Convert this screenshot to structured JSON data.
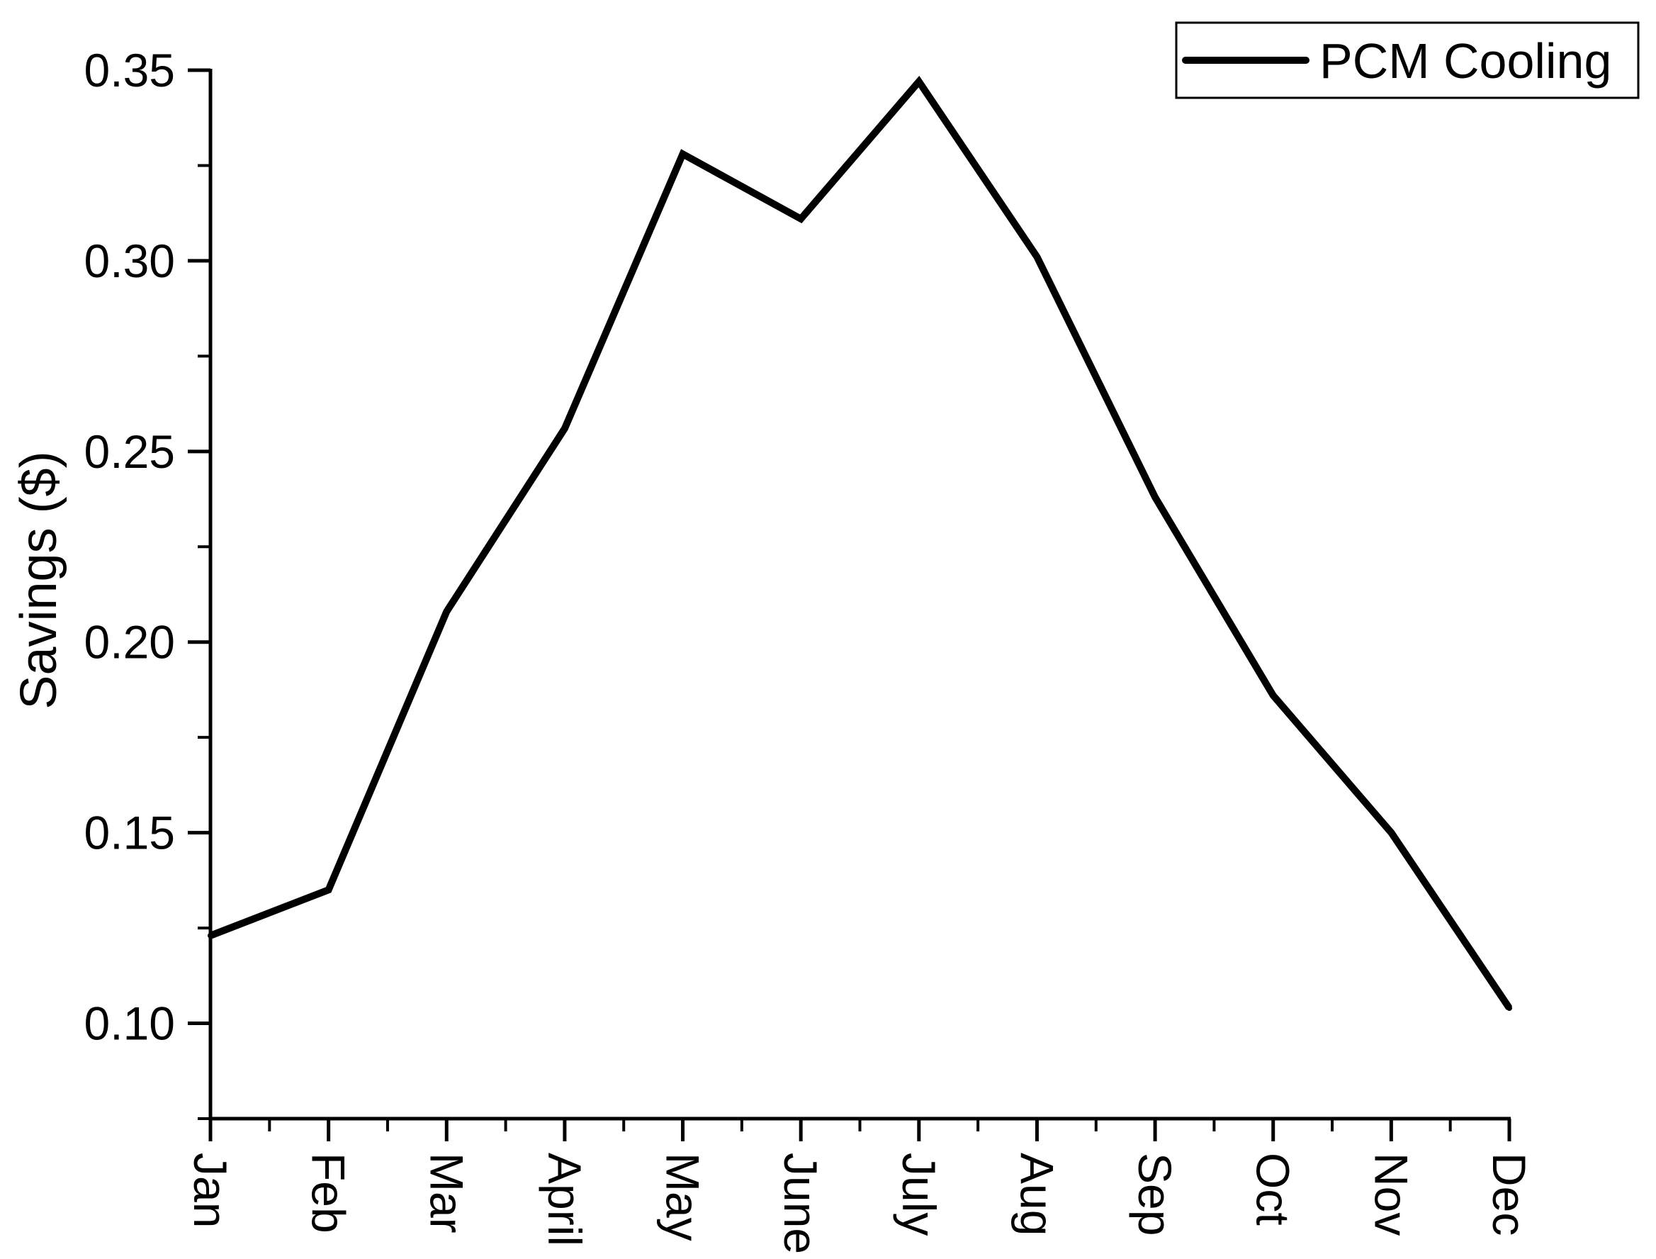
{
  "chart_data": {
    "type": "line",
    "title": "",
    "xlabel": "",
    "ylabel": "Savings ($)",
    "categories": [
      "Jan",
      "Feb",
      "Mar",
      "April",
      "May",
      "June",
      "July",
      "Aug",
      "Sep",
      "Oct",
      "Nov",
      "Dec"
    ],
    "series": [
      {
        "name": "PCM Cooling",
        "color": "#000000",
        "values": [
          0.123,
          0.135,
          0.208,
          0.256,
          0.328,
          0.311,
          0.347,
          0.301,
          0.238,
          0.186,
          0.15,
          0.104
        ]
      }
    ],
    "ylim": [
      0.075,
      0.35
    ],
    "yticks": [
      "0.10",
      "0.15",
      "0.20",
      "0.25",
      "0.30",
      "0.35"
    ],
    "grid": false,
    "legend_position": "top-right",
    "x_tick_label_orientation": "rotated 90° clockwise"
  }
}
